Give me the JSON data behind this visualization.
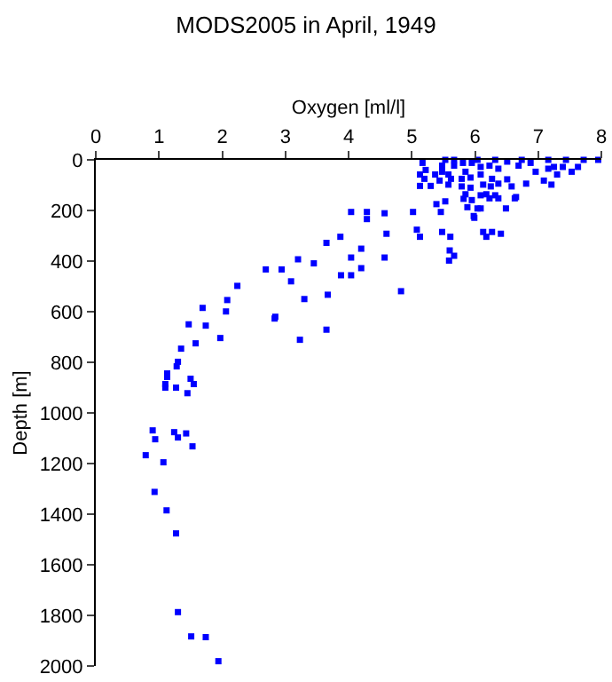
{
  "chart_data": {
    "type": "scatter",
    "title": "MODS2005 in April, 1949",
    "xlabel": "Oxygen [ml/l]",
    "ylabel": "Depth [m]",
    "x": [
      1.27,
      1.3,
      1.51,
      1.74,
      1.94,
      1.69,
      2.06,
      2.83,
      3.23,
      3.65,
      1.47,
      1.74,
      1.58,
      1.97,
      1.35,
      1.3,
      1.28,
      1.13,
      1.13,
      1.5,
      1.55,
      1.1,
      1.1,
      1.27,
      1.45,
      0.9,
      1.24,
      1.43,
      0.94,
      1.3,
      1.53,
      0.79,
      1.07,
      0.93,
      1.12,
      2.08,
      2.24,
      2.84,
      2.69,
      2.94,
      3.09,
      3.2,
      3.3,
      3.45,
      3.65,
      3.87,
      3.67,
      3.88,
      4.04,
      4.04,
      4.2,
      4.2,
      4.04,
      4.29,
      4.29,
      4.57,
      4.6,
      4.57,
      4.83,
      5.02,
      5.08,
      5.13,
      5.39,
      5.46,
      5.48,
      5.53,
      5.61,
      5.6,
      5.67,
      5.59,
      5.82,
      5.88,
      5.98,
      6.13,
      6.18,
      6.27,
      6.41,
      6.49,
      6.09,
      6.63,
      6.09,
      6.32,
      5.17,
      5.22,
      5.13,
      5.2,
      5.13,
      5.3,
      5.44,
      5.58,
      5.48,
      5.67,
      5.95,
      6.23,
      6.51,
      6.88,
      7.16,
      7.44,
      7.72,
      7.95,
      7.63,
      7.53,
      7.3,
      7.21,
      7.09,
      6.96,
      6.81,
      6.58,
      6.65,
      6.51,
      6.37,
      6.25,
      6.27,
      6.13,
      6.09,
      5.93,
      5.93,
      5.79,
      5.79,
      5.62,
      5.85,
      6.09,
      6.37,
      5.58,
      5.37,
      5.48,
      5.81,
      6.69,
      6.74,
      6.32,
      5.67,
      6.04,
      5.53,
      7.25,
      7.16,
      7.39,
      6.18,
      5.95,
      6.04,
      5.99,
      5.85,
      6.37,
      6.23
    ],
    "series": [
      {
        "color": "#0000ff",
        "values": [
          1476,
          1787,
          1883,
          1886,
          1981,
          585,
          599,
          627,
          711,
          671,
          650,
          655,
          725,
          704,
          746,
          798,
          816,
          844,
          858,
          865,
          886,
          886,
          900,
          900,
          922,
          1069,
          1076,
          1081,
          1104,
          1097,
          1132,
          1167,
          1195,
          1312,
          1385,
          554,
          498,
          620,
          433,
          433,
          480,
          393,
          550,
          409,
          328,
          304,
          533,
          456,
          456,
          386,
          351,
          428,
          206,
          206,
          234,
          211,
          292,
          386,
          519,
          206,
          276,
          304,
          175,
          206,
          285,
          164,
          304,
          358,
          379,
          398,
          154,
          187,
          222,
          285,
          304,
          285,
          292,
          192,
          192,
          152,
          140,
          140,
          12,
          40,
          58,
          75,
          103,
          103,
          82,
          98,
          47,
          23,
          12,
          23,
          7,
          12,
          0,
          0,
          0,
          0,
          28,
          47,
          58,
          98,
          82,
          47,
          94,
          105,
          147,
          77,
          94,
          105,
          75,
          98,
          58,
          110,
          70,
          105,
          75,
          75,
          47,
          28,
          35,
          58,
          58,
          23,
          12,
          23,
          0,
          0,
          0,
          0,
          0,
          28,
          35,
          28,
          136,
          159,
          192,
          229,
          136,
          152,
          152
        ]
      }
    ],
    "xlim": [
      0,
      8
    ],
    "xticks": [
      0,
      1,
      2,
      3,
      4,
      5,
      6,
      7,
      8
    ],
    "ylim": [
      2000,
      0
    ],
    "yticks": [
      0,
      200,
      400,
      600,
      800,
      1000,
      1200,
      1400,
      1600,
      1800,
      2000
    ],
    "grid": false,
    "marker": "square"
  }
}
